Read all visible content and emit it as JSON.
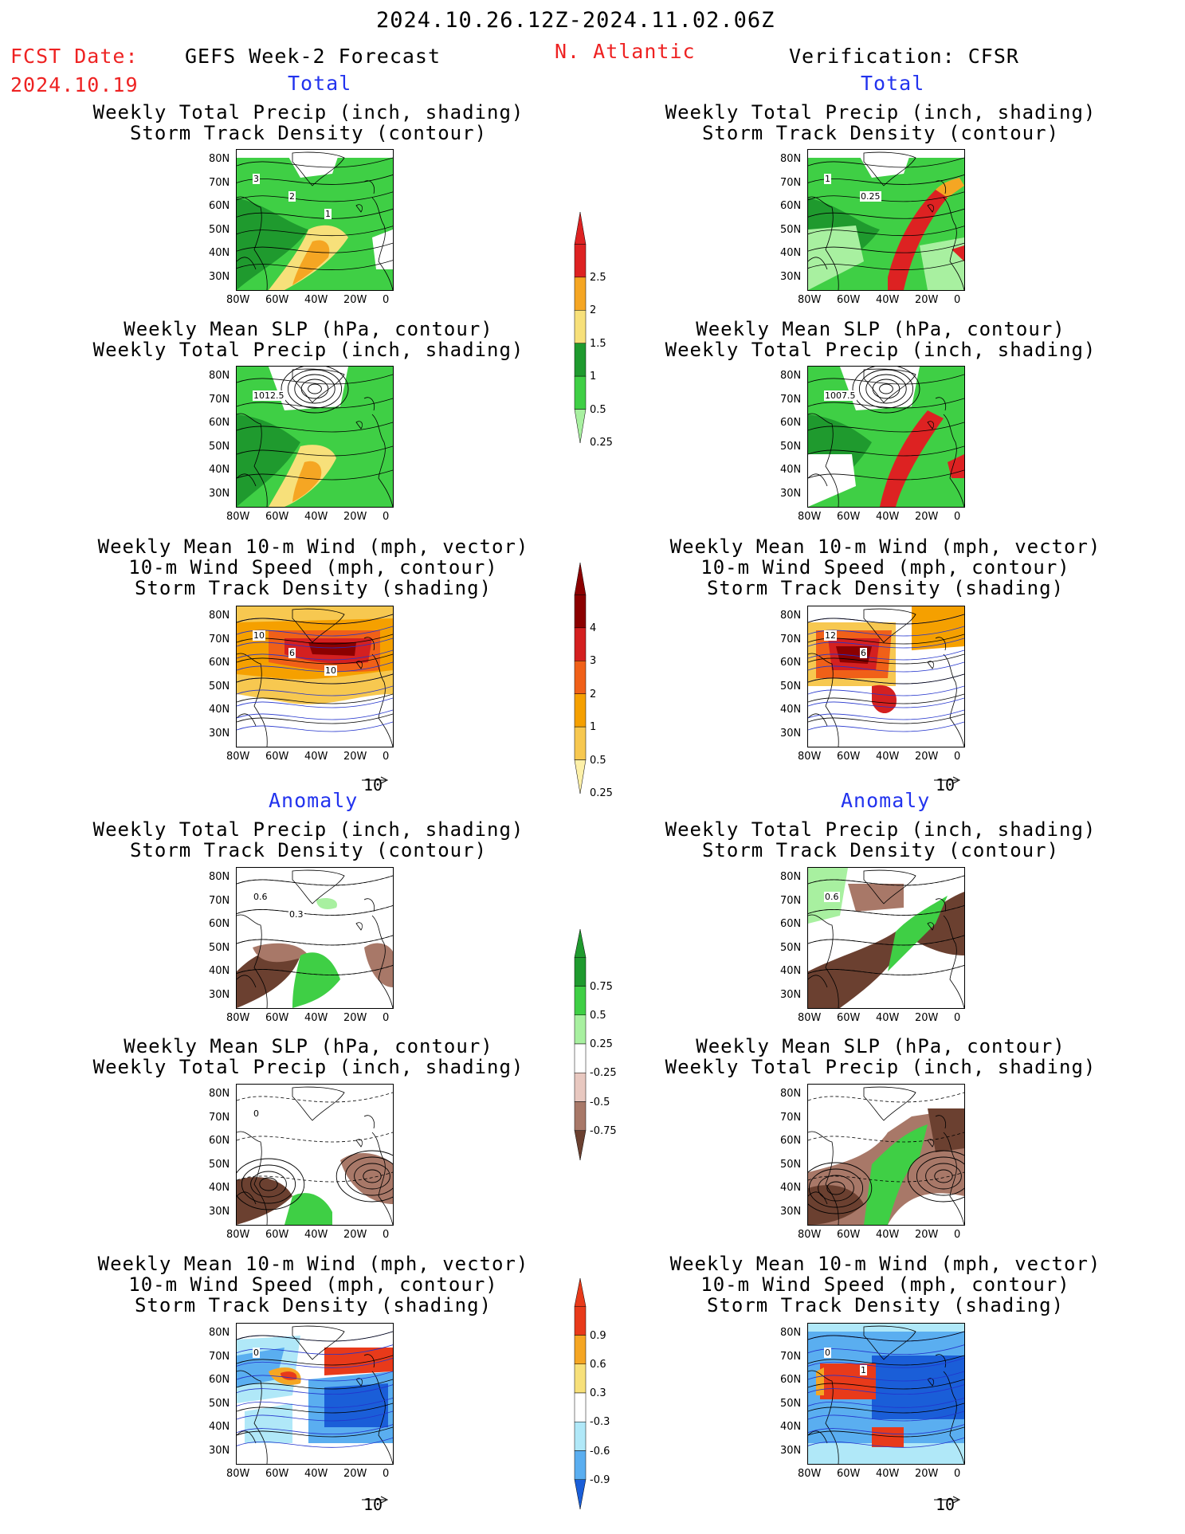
{
  "header": {
    "period": "2024.10.26.12Z-2024.11.02.06Z",
    "fcst_label": "FCST Date:",
    "fcst_date": "2024.10.19",
    "left_title": "GEFS Week-2 Forecast",
    "region": "N. Atlantic",
    "right_title": "Verification: CFSR"
  },
  "sections": {
    "total": "Total",
    "anomaly": "Anomaly"
  },
  "panel_titles": {
    "precip_track": [
      "Weekly Total Precip (inch, shading)",
      "Storm Track Density (contour)"
    ],
    "slp_precip": [
      "Weekly Mean SLP (hPa, contour)",
      "Weekly Total Precip (inch, shading)"
    ],
    "wind_track": [
      "Weekly Mean 10-m Wind (mph, vector)",
      "10-m Wind Speed (mph, contour)",
      "Storm Track Density (shading)"
    ]
  },
  "axes": {
    "lat_labels": [
      "80N",
      "70N",
      "60N",
      "50N",
      "40N",
      "30N"
    ],
    "lon_labels": [
      "80W",
      "60W",
      "40W",
      "20W",
      "0"
    ]
  },
  "vector_ref": "10",
  "map_labels": {
    "fc_precip_track": [
      "3",
      "2",
      "1"
    ],
    "obs_precip_track": [
      "1",
      "0.25"
    ],
    "fc_slp": [
      "1012.5"
    ],
    "obs_slp": [
      "1007.5"
    ],
    "fc_wind": [
      "10",
      "6",
      "10"
    ],
    "obs_wind": [
      "12",
      "6"
    ],
    "fc_anom_precip": [
      "0.6",
      "0.3"
    ],
    "obs_anom_precip": [
      "0.6"
    ],
    "fc_anom_slp": [
      "0"
    ],
    "fc_anom_wind": [
      "0"
    ],
    "obs_anom_wind": [
      "0",
      "1"
    ]
  },
  "colorbars": {
    "precip_total": {
      "labels": [
        "2.5",
        "2",
        "1.5",
        "1",
        "0.5",
        "0.25"
      ],
      "colors": [
        "#dd2222",
        "#f5a623",
        "#f7e07a",
        "#1f9a2e",
        "#3fcf45",
        "#a8f0a0"
      ]
    },
    "track_total": {
      "labels": [
        "4",
        "3",
        "2",
        "1",
        "0.5",
        "0.25"
      ],
      "colors": [
        "#8b0000",
        "#d42020",
        "#f06018",
        "#f5a000",
        "#f7c850",
        "#fdf0a8"
      ]
    },
    "precip_anom": {
      "labels": [
        "0.75",
        "0.5",
        "0.25",
        "-0.25",
        "-0.5",
        "-0.75"
      ],
      "colors": [
        "#1f9a2e",
        "#3fcf45",
        "#a8f0a0",
        "#ffffff",
        "#e8c8c0",
        "#a87868",
        "#6b4030"
      ]
    },
    "track_anom": {
      "labels": [
        "0.9",
        "0.6",
        "0.3",
        "-0.3",
        "-0.6",
        "-0.9"
      ],
      "colors": [
        "#e83a1a",
        "#f5a623",
        "#f7e07a",
        "#ffffff",
        "#b0e8f8",
        "#5aaef0",
        "#1a5ed8"
      ]
    }
  }
}
